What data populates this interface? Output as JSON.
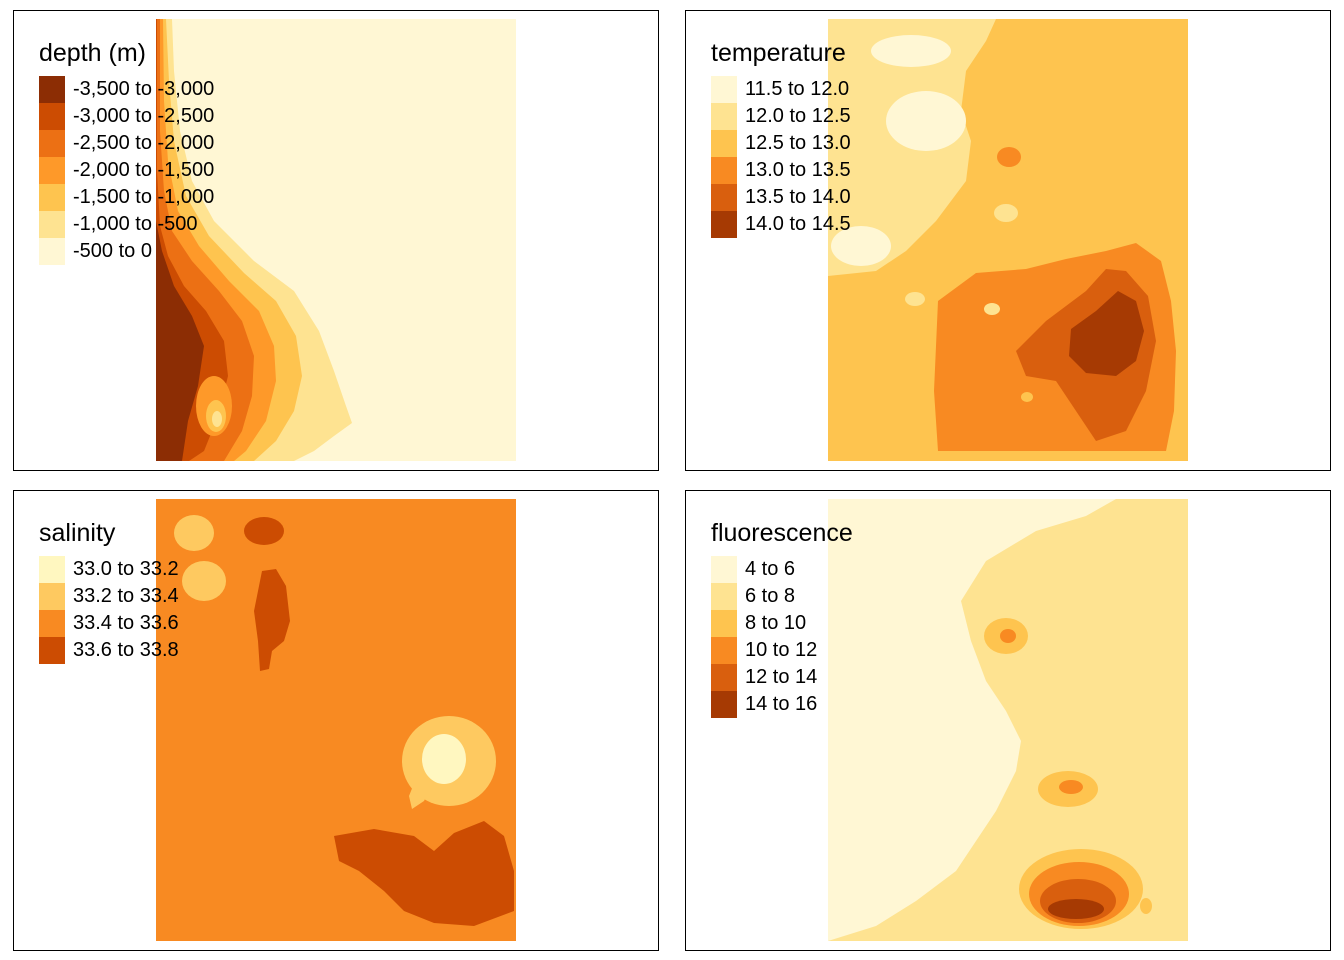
{
  "panels": [
    {
      "id": "depth",
      "title": "depth (m)",
      "legend": [
        {
          "label": "-3,500 to -3,000",
          "color": "#8c2d04"
        },
        {
          "label": "-3,000 to -2,500",
          "color": "#cc4c02"
        },
        {
          "label": "-2,500 to -2,000",
          "color": "#ec7014"
        },
        {
          "label": "-2,000 to -1,500",
          "color": "#fe9929"
        },
        {
          "label": "-1,500 to -1,000",
          "color": "#fec44f"
        },
        {
          "label": "-1,000 to -500",
          "color": "#fee391"
        },
        {
          "label": "-500 to 0",
          "color": "#fff7d4"
        }
      ]
    },
    {
      "id": "temperature",
      "title": "temperature",
      "legend": [
        {
          "label": "11.5 to 12.0",
          "color": "#fff7d4"
        },
        {
          "label": "12.0 to 12.5",
          "color": "#fee391"
        },
        {
          "label": "12.5 to 13.0",
          "color": "#fec44f"
        },
        {
          "label": "13.0 to 13.5",
          "color": "#f88a22"
        },
        {
          "label": "13.5 to 14.0",
          "color": "#d95f0e"
        },
        {
          "label": "14.0 to 14.5",
          "color": "#a63a03"
        }
      ]
    },
    {
      "id": "salinity",
      "title": "salinity",
      "legend": [
        {
          "label": "33.0 to 33.2",
          "color": "#fff7c0"
        },
        {
          "label": "33.2 to 33.4",
          "color": "#fec960"
        },
        {
          "label": "33.4 to 33.6",
          "color": "#f88a22"
        },
        {
          "label": "33.6 to 33.8",
          "color": "#cc4c02"
        }
      ]
    },
    {
      "id": "fluorescence",
      "title": "fluorescence",
      "legend": [
        {
          "label": "4 to 6",
          "color": "#fff7d4"
        },
        {
          "label": "6 to 8",
          "color": "#fee391"
        },
        {
          "label": "8 to 10",
          "color": "#fec44f"
        },
        {
          "label": "10 to 12",
          "color": "#f88a22"
        },
        {
          "label": "12 to 14",
          "color": "#d95f0e"
        },
        {
          "label": "14 to 16",
          "color": "#a63a03"
        }
      ]
    }
  ]
}
